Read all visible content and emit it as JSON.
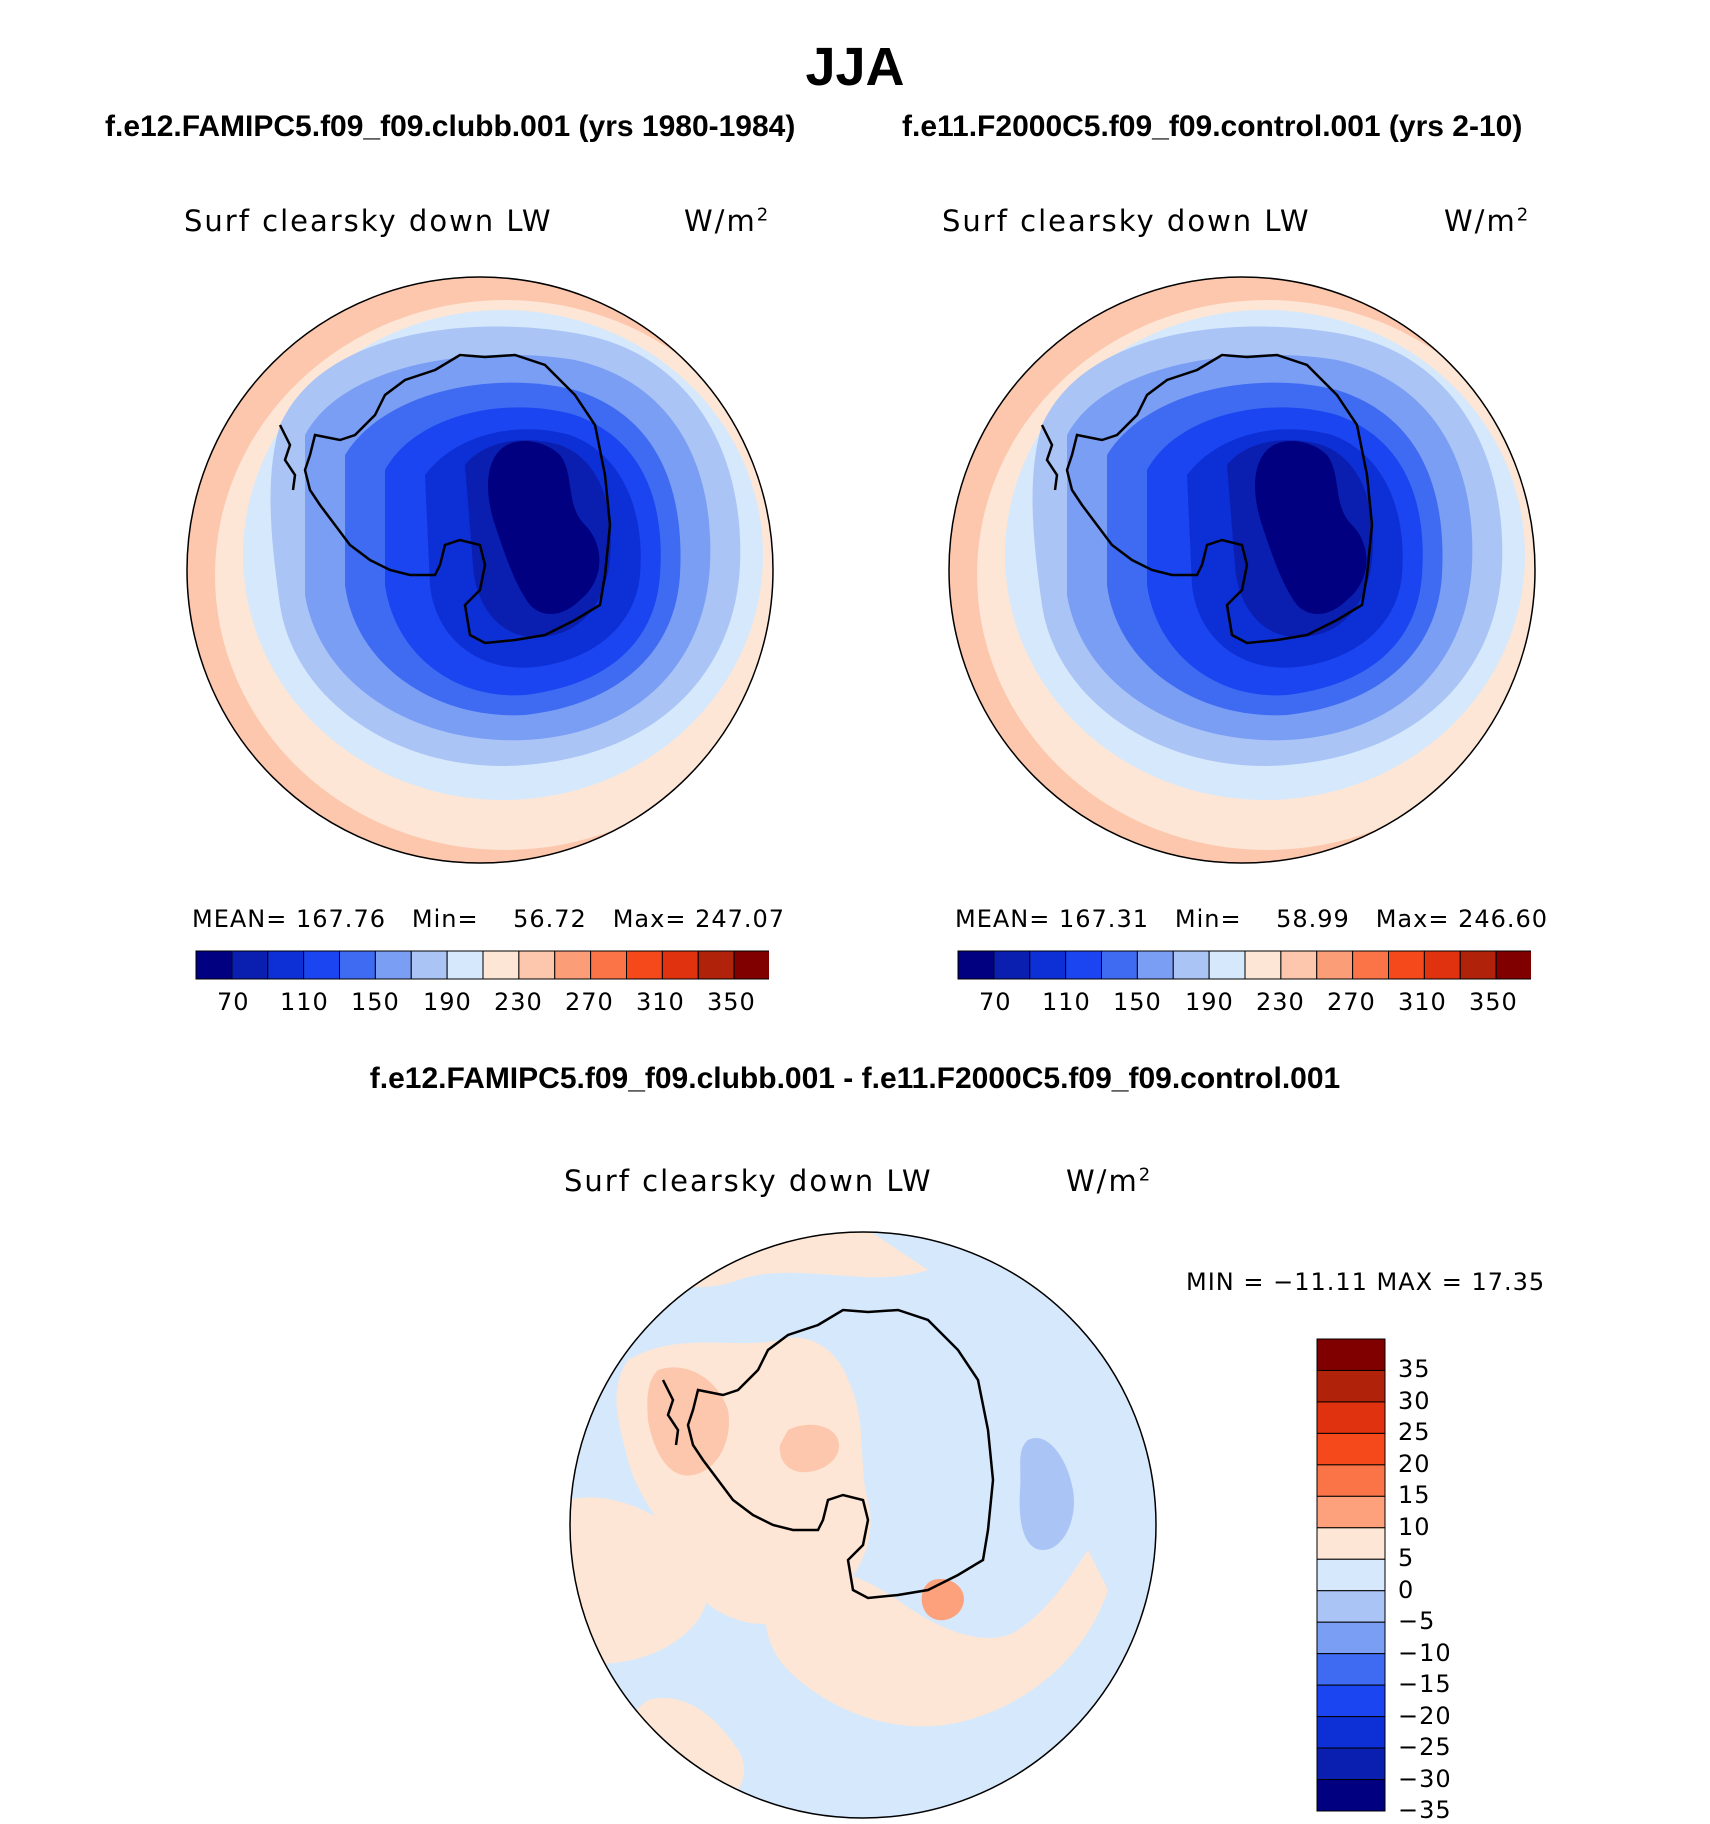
{
  "title": "JJA",
  "panels": [
    {
      "case_title": "f.e12.FAMIPC5.f09_f09.clubb.001 (yrs 1980-1984)",
      "variable": "Surf clearsky down LW",
      "units_base": "W/m",
      "units_exp": "2",
      "stats": {
        "mean_label": "MEAN=",
        "mean": "167.76",
        "min_label": "Min=",
        "min": "56.72",
        "max_label": "Max=",
        "max": "247.07"
      }
    },
    {
      "case_title": "f.e11.F2000C5.f09_f09.control.001 (yrs 2-10)",
      "variable": "Surf clearsky down LW",
      "units_base": "W/m",
      "units_exp": "2",
      "stats": {
        "mean_label": "MEAN=",
        "mean": "167.31",
        "min_label": "Min=",
        "min": "58.99",
        "max_label": "Max=",
        "max": "246.60"
      }
    }
  ],
  "colorbar": {
    "colors": [
      "#000080",
      "#0a1fb0",
      "#0d2fd6",
      "#1a45f0",
      "#3e6bf2",
      "#7a9ef4",
      "#aac4f6",
      "#d6e8fb",
      "#fde6d5",
      "#fcc7ad",
      "#fb9e78",
      "#fa7447",
      "#f5491c",
      "#e0320f",
      "#b0220a",
      "#800000"
    ],
    "tick_labels": [
      "70",
      "110",
      "150",
      "190",
      "230",
      "270",
      "310",
      "350"
    ]
  },
  "difference": {
    "title": "f.e12.FAMIPC5.f09_f09.clubb.001 - f.e11.F2000C5.f09_f09.control.001",
    "variable": "Surf clearsky down LW",
    "units_base": "W/m",
    "units_exp": "2",
    "min_max_text": "MIN = −11.11 MAX =   17.35",
    "colorbar": {
      "colors": [
        "#800000",
        "#b0220a",
        "#e0320f",
        "#f5491c",
        "#fa7447",
        "#fca17c",
        "#fde6d5",
        "#d6e8fb",
        "#aac4f6",
        "#7a9ef4",
        "#3e6bf2",
        "#1a45f0",
        "#0d2fd6",
        "#0a1fb0",
        "#000080"
      ],
      "tick_labels": [
        "35",
        "30",
        "25",
        "20",
        "15",
        "10",
        "5",
        "0",
        "−5",
        "−10",
        "−15",
        "−20",
        "−25",
        "−30",
        "−35"
      ]
    }
  }
}
